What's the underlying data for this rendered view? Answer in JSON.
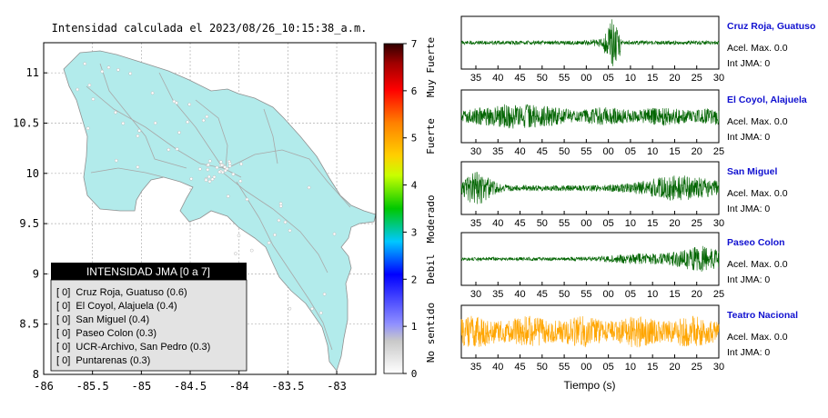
{
  "title": "Intensidad calculada el 2023/08/26_10:15:38_a.m.",
  "map": {
    "lon_ticks": [
      "-86",
      "-85.5",
      "-85",
      "-84.5",
      "-84",
      "-83.5",
      "-83"
    ],
    "lat_ticks": [
      "11",
      "10.5",
      "10",
      "9.5",
      "9",
      "8.5",
      "8"
    ],
    "xlim": [
      -86.0,
      -82.6
    ],
    "ylim": [
      8.0,
      11.3
    ],
    "land_color": "#b2ebeb",
    "legend": {
      "title": "INTENSIDAD JMA [0 a 7]",
      "rows": [
        "[ 0]  Cruz Roja, Guatuso (0.6)",
        "[ 0]  El Coyol, Alajuela (0.4)",
        "[ 0]  San Miguel (0.4)",
        "[ 0]  Paseo Colon (0.3)",
        "[ 0]  UCR-Archivo, San Pedro (0.3)",
        "[ 0]  Puntarenas (0.3)"
      ]
    }
  },
  "colorbar": {
    "ticks": [
      "0",
      "1",
      "2",
      "3",
      "4",
      "5",
      "6",
      "7"
    ],
    "labels": [
      "No sentido",
      "Debil",
      "Moderado",
      "Fuerte",
      "Muy Fuerte"
    ],
    "range": [
      0,
      7
    ]
  },
  "waveforms": {
    "xlabel": "Tiempo (s)",
    "panels": [
      {
        "name": "Cruz Roja, Guatuso",
        "acel": "Acel. Max. 0.0",
        "int": "Int JMA: 0",
        "color": "#006400",
        "ticks": [
          "35",
          "40",
          "45",
          "50",
          "55",
          "00",
          "05",
          "10",
          "15",
          "20",
          "25",
          "30"
        ]
      },
      {
        "name": "El Coyol, Alajuela",
        "acel": "Acel. Max. 0.0",
        "int": "Int JMA: 0",
        "color": "#006400",
        "ticks": [
          "30",
          "35",
          "40",
          "45",
          "50",
          "55",
          "00",
          "05",
          "10",
          "15",
          "20",
          "25"
        ]
      },
      {
        "name": "San Miguel",
        "acel": "Acel. Max. 0.0",
        "int": "Int JMA: 0",
        "color": "#006400",
        "ticks": [
          "35",
          "40",
          "45",
          "50",
          "55",
          "00",
          "05",
          "10",
          "15",
          "20",
          "25",
          "30"
        ]
      },
      {
        "name": "Paseo Colon",
        "acel": "Acel. Max. 0.0",
        "int": "Int JMA: 0",
        "color": "#006400",
        "ticks": [
          "30",
          "35",
          "40",
          "45",
          "50",
          "55",
          "00",
          "05",
          "10",
          "15",
          "20",
          "25"
        ]
      },
      {
        "name": "Teatro Nacional",
        "acel": "Acel. Max. 0.0",
        "int": "Int JMA: 0",
        "color": "#ffa500",
        "ticks": [
          "35",
          "40",
          "45",
          "50",
          "55",
          "00",
          "05",
          "10",
          "15",
          "20",
          "25",
          "30"
        ]
      }
    ]
  },
  "chart_data": [
    {
      "type": "scatter",
      "title": "Intensidad calculada el 2023/08/26_10:15:38_a.m.",
      "xlabel": "",
      "ylabel": "",
      "xlim": [
        -86.0,
        -82.6
      ],
      "ylim": [
        8.0,
        11.3
      ],
      "grid": true,
      "legend_placement": "bottom-left"
    },
    {
      "type": "line",
      "xlabel": "Tiempo (s)",
      "series": [
        {
          "name": "Cruz Roja, Guatuso",
          "values": []
        },
        {
          "name": "El Coyol, Alajuela",
          "values": []
        },
        {
          "name": "San Miguel",
          "values": []
        },
        {
          "name": "Paseo Colon",
          "values": []
        },
        {
          "name": "Teatro Nacional",
          "values": []
        }
      ]
    }
  ]
}
